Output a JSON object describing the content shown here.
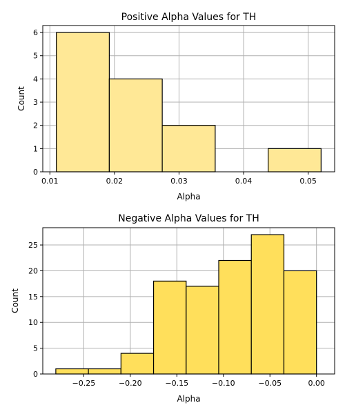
{
  "chart_data": [
    {
      "type": "bar",
      "title": "Positive Alpha Values for TH",
      "xlabel": "Alpha",
      "ylabel": "Count",
      "bin_edges": [
        0.011,
        0.0192,
        0.0274,
        0.0356,
        0.0438,
        0.052
      ],
      "values": [
        6,
        4,
        2,
        0,
        1
      ],
      "xlim": [
        0.0089,
        0.0541
      ],
      "ylim": [
        0,
        6.3
      ],
      "xticks": [
        0.01,
        0.02,
        0.03,
        0.04,
        0.05
      ],
      "xtick_labels": [
        "0.01",
        "0.02",
        "0.03",
        "0.04",
        "0.05"
      ],
      "yticks": [
        0,
        1,
        2,
        3,
        4,
        5,
        6
      ],
      "ytick_labels": [
        "0",
        "1",
        "2",
        "3",
        "4",
        "5",
        "6"
      ],
      "grid": true,
      "bar_color": "#FFE896",
      "edge_color": "#000000"
    },
    {
      "type": "bar",
      "title": "Negative Alpha Values for TH",
      "xlabel": "Alpha",
      "ylabel": "Count",
      "bin_edges": [
        -0.28,
        -0.245,
        -0.21,
        -0.175,
        -0.14,
        -0.105,
        -0.07,
        -0.035,
        0.0
      ],
      "values": [
        1,
        1,
        4,
        18,
        17,
        22,
        27,
        20
      ],
      "xlim": [
        -0.294,
        0.0195
      ],
      "ylim": [
        0,
        28.35
      ],
      "xticks": [
        -0.25,
        -0.2,
        -0.15,
        -0.1,
        -0.05,
        0.0
      ],
      "xtick_labels": [
        "−0.25",
        "−0.20",
        "−0.15",
        "−0.10",
        "−0.05",
        "0.00"
      ],
      "yticks": [
        0,
        5,
        10,
        15,
        20,
        25
      ],
      "ytick_labels": [
        "0",
        "5",
        "10",
        "15",
        "20",
        "25"
      ],
      "grid": true,
      "bar_color": "#FFDF5B",
      "edge_color": "#000000"
    }
  ]
}
